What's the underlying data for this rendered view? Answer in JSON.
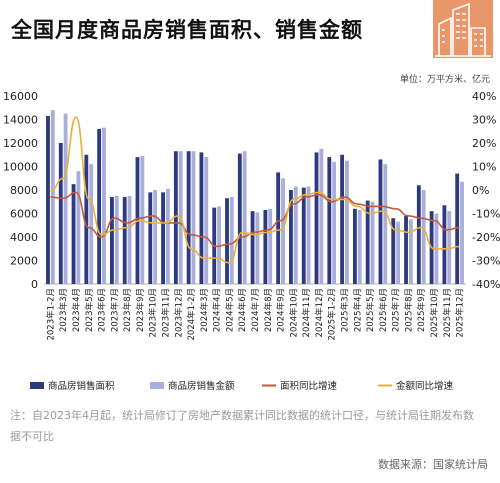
{
  "header": {
    "title": "全国月度商品房销售面积、销售金额",
    "units": "单位：万平方米、亿元"
  },
  "footer": {
    "note": "注：自2023年4月起，统计局修订了房地产数据累计同比数据的统计口径，与统计局往期发布数据不可比",
    "source": "数据来源：国家统计局"
  },
  "colors": {
    "area_bar": "#2d3a7e",
    "amount_bar": "#a9aedb",
    "area_yoy": "#c25a3e",
    "amount_yoy": "#e8b23a",
    "logo": "#e9966a"
  },
  "chart_data": {
    "type": "bar",
    "categories": [
      "2023年1-2月",
      "2023年3月",
      "2023年4月",
      "2023年5月",
      "2023年6月",
      "2023年7月",
      "2023年8月",
      "2023年9月",
      "2023年10月",
      "2023年11月",
      "2023年12月",
      "2024年1-2月",
      "2024年3月",
      "2024年4月",
      "2024年5月",
      "2024年6月",
      "2024年7月",
      "2024年8月",
      "2024年9月",
      "2024年10月",
      "2024年11月",
      "2024年12月",
      "2025年1-2月",
      "2025年3月",
      "2025年4月",
      "2025年5月",
      "2025年6月",
      "2025年7月",
      "2025年8月",
      "2025年9月",
      "2025年10月",
      "2025年11月",
      "2025年12月"
    ],
    "series": [
      {
        "name": "商品房销售面积",
        "kind": "bar",
        "axis": "left",
        "values": [
          14300,
          12000,
          8500,
          11000,
          13200,
          7400,
          7400,
          10800,
          7800,
          7800,
          11300,
          11300,
          11200,
          6500,
          7300,
          11100,
          6200,
          6300,
          9500,
          8000,
          8200,
          11200,
          10800,
          11000,
          6400,
          7100,
          10600,
          5600,
          5800,
          8400,
          6200,
          6700,
          9400
        ]
      },
      {
        "name": "商品房销售金额",
        "kind": "bar",
        "axis": "left",
        "values": [
          14800,
          14500,
          9600,
          10200,
          13300,
          7500,
          7500,
          10900,
          8000,
          8100,
          11300,
          11300,
          10800,
          6600,
          7400,
          11300,
          6100,
          6400,
          9000,
          8300,
          8300,
          11500,
          10400,
          10500,
          6300,
          7000,
          10200,
          5300,
          5500,
          8000,
          6000,
          6200,
          8700
        ]
      },
      {
        "name": "面积同比增速",
        "kind": "line",
        "axis": "right",
        "values": [
          -3,
          -3.5,
          -1,
          -16,
          -20,
          -12,
          -14,
          -12,
          -11,
          -14,
          -14,
          -19,
          -20,
          -24,
          -23,
          -20,
          -18,
          -17,
          -13,
          -6,
          -3,
          -2,
          -5,
          -3,
          -6,
          -7,
          -7,
          -8,
          -11,
          -12,
          -13,
          -17,
          -16
        ]
      },
      {
        "name": "金额同比增速",
        "kind": "line",
        "axis": "right",
        "values": [
          -0.5,
          5,
          31,
          -4,
          -19,
          -17,
          -16,
          -13,
          -14,
          -14,
          -11,
          -25,
          -29,
          -29,
          -31,
          -18,
          -19,
          -18,
          -17,
          -4,
          -2,
          -1,
          -4,
          -4,
          -7,
          -10,
          -9,
          -17,
          -18,
          -16,
          -25,
          -25,
          -24
        ]
      }
    ],
    "ylim_left": [
      0,
      16000
    ],
    "yticks_left": [
      "0",
      "2000",
      "4000",
      "6000",
      "8000",
      "10000",
      "12000",
      "14000",
      "16000"
    ],
    "ylim_right": [
      -40,
      40
    ],
    "yticks_right": [
      "-40%",
      "-30%",
      "-20%",
      "-10%",
      "0%",
      "10%",
      "20%",
      "30%",
      "40%"
    ],
    "grid": false,
    "legend_position": "bottom"
  }
}
